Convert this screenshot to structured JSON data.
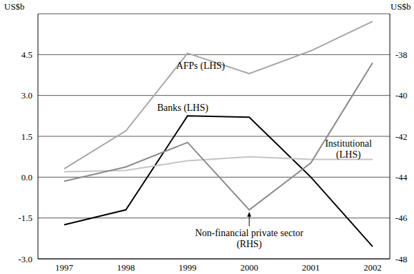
{
  "chart_data": {
    "type": "line",
    "categories": [
      "1997",
      "1998",
      "1999",
      "2000",
      "2001",
      "2002"
    ],
    "ylabel": "US$b",
    "y2label": "US$b",
    "ylim": [
      -3,
      6
    ],
    "yticks": [
      {
        "value": -3,
        "label": "-3.0"
      },
      {
        "value": -1.5,
        "label": "-1.5"
      },
      {
        "value": 0,
        "label": "0.0"
      },
      {
        "value": 1.5,
        "label": "1.5"
      },
      {
        "value": 3,
        "label": "3.0"
      },
      {
        "value": 4.5,
        "label": "4.5"
      }
    ],
    "y2lim": [
      -48,
      -36
    ],
    "y2ticks": [
      -48,
      -46,
      -44,
      -42,
      -40,
      -38
    ],
    "grid": true,
    "series": [
      {
        "name": "AFPs (LHS)",
        "color": "#a6a6a6",
        "values": [
          0.31,
          1.7,
          4.55,
          3.8,
          4.64,
          5.72
        ]
      },
      {
        "name": "Banks (LHS)",
        "color": "#000000",
        "values": [
          -1.75,
          -1.2,
          2.25,
          2.2,
          0.0,
          -2.55
        ]
      },
      {
        "name": "Institutional (LHS)",
        "color": "#c4c4c4",
        "values": [
          0.2,
          0.25,
          0.6,
          0.75,
          0.65,
          0.65
        ]
      },
      {
        "name": "Non-financial private sector (RHS)",
        "color": "#8a8a8a",
        "axis": "y2",
        "values": [
          -44.2,
          -43.5,
          -42.3,
          -45.6,
          -43.3,
          -38.4
        ]
      }
    ]
  }
}
